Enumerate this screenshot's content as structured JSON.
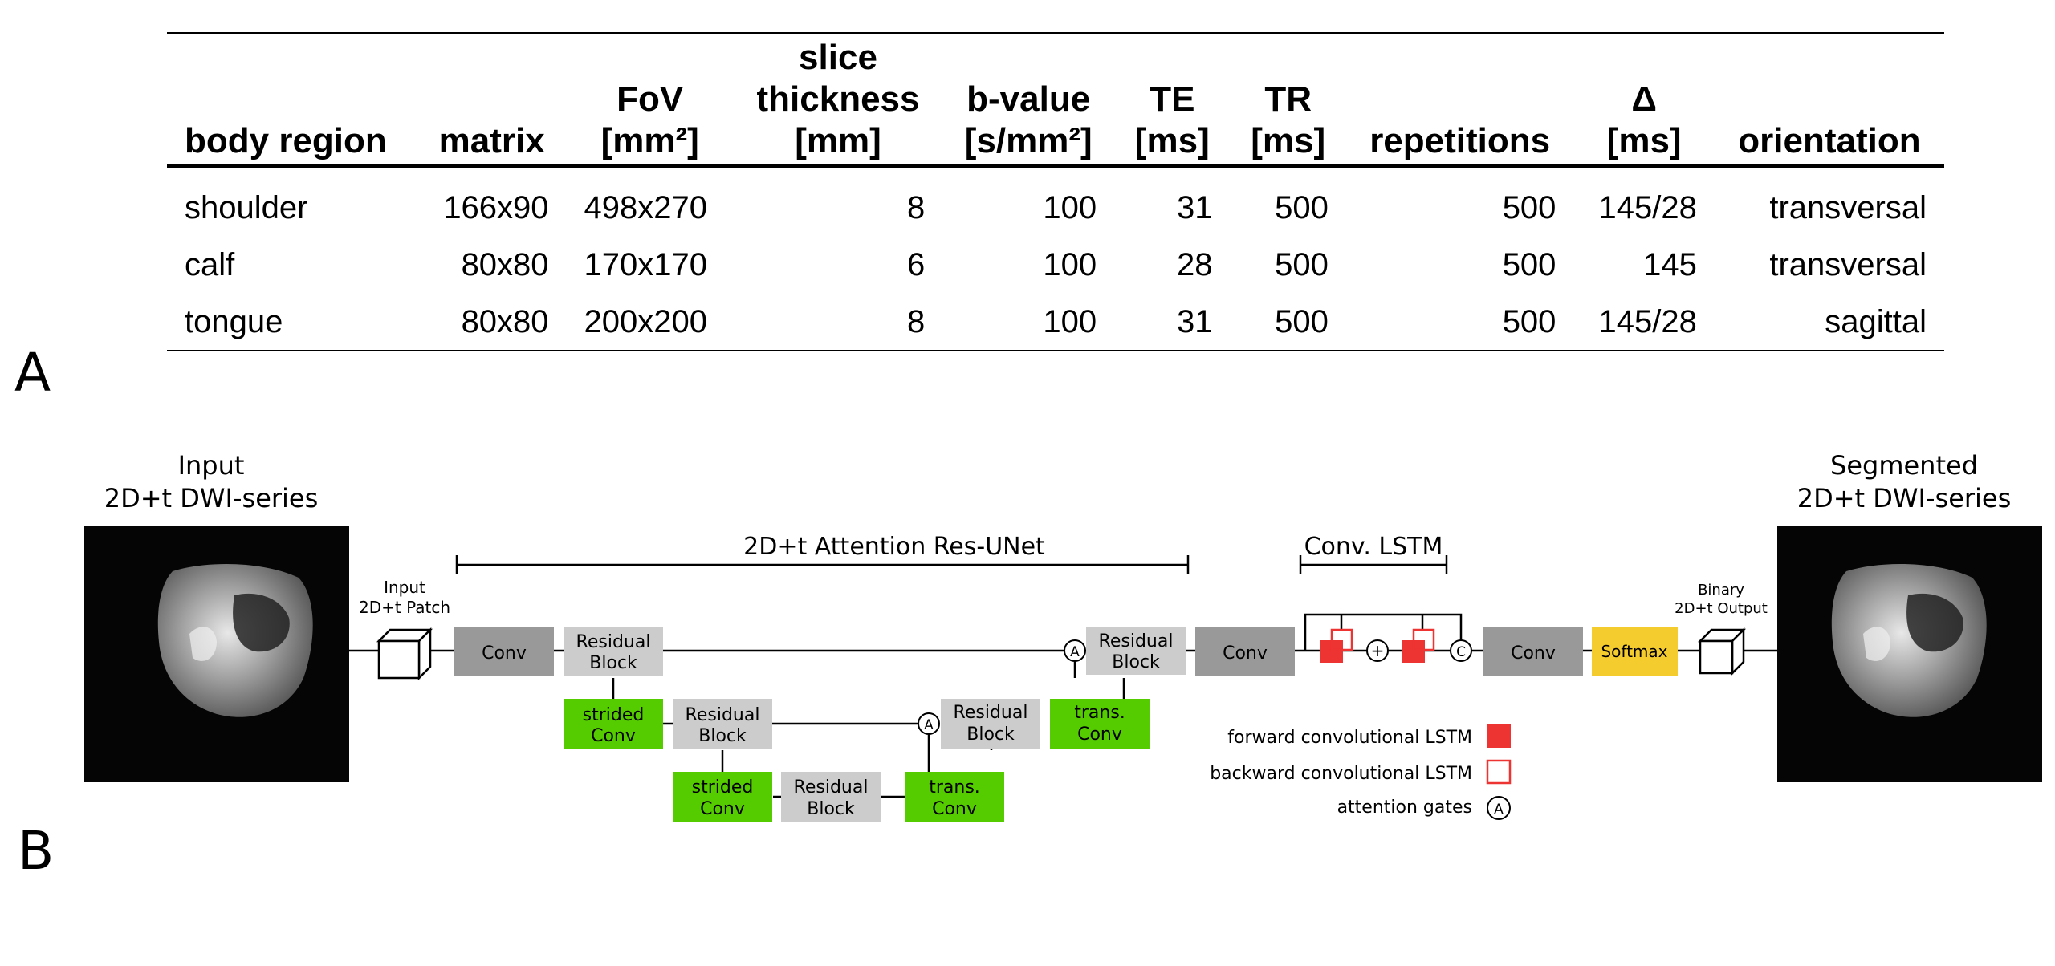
{
  "table": {
    "headers": [
      "body region",
      "matrix",
      "FoV\n[mm²]",
      "slice\nthickness\n[mm]",
      "b-value\n[s/mm²]",
      "TE\n[ms]",
      "TR\n[ms]",
      "repetitions",
      "Δ\n[ms]",
      "orientation"
    ],
    "rows": [
      [
        "shoulder",
        "166x90",
        "498x270",
        "8",
        "100",
        "31",
        "500",
        "500",
        "145/28",
        "transversal"
      ],
      [
        "calf",
        "80x80",
        "170x170",
        "6",
        "100",
        "28",
        "500",
        "500",
        "145",
        "transversal"
      ],
      [
        "tongue",
        "80x80",
        "200x200",
        "8",
        "100",
        "31",
        "500",
        "500",
        "145/28",
        "sagittal"
      ]
    ]
  },
  "panels": {
    "a": "A",
    "b": "B"
  },
  "diagram": {
    "input_title": [
      "Input",
      "2D+t DWI-series"
    ],
    "output_title": [
      "Segmented",
      "2D+t DWI-series"
    ],
    "input_patch_label": [
      "Input",
      "2D+t Patch"
    ],
    "binary_output_label": [
      "Binary",
      "2D+t Output"
    ],
    "unet_label": "2D+t Attention Res-UNet",
    "lstm_label": "Conv. LSTM",
    "blocks": {
      "conv": "Conv",
      "residual": [
        "Residual",
        "Block"
      ],
      "strided": [
        "strided",
        "Conv"
      ],
      "trans": [
        "trans.",
        "Conv"
      ],
      "softmax": "Softmax"
    },
    "symbols": {
      "attention": "A",
      "plus": "+",
      "concat": "C"
    },
    "legend": {
      "forward": "forward convolutional LSTM",
      "backward": "backward convolutional LSTM",
      "attention": "attention gates"
    },
    "colors": {
      "conv": "#999999",
      "residual": "#cccccc",
      "strided": "#55cc00",
      "softmax": "#f5cc2e",
      "lstm": "#ee3333"
    }
  }
}
